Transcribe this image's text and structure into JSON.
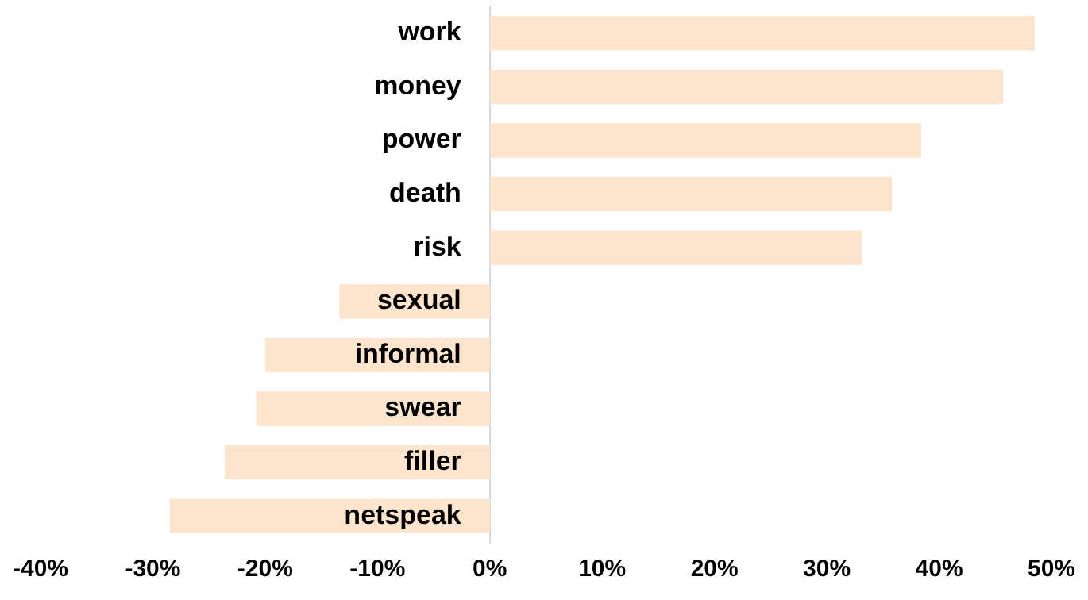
{
  "chart_data": {
    "type": "bar",
    "orientation": "horizontal",
    "categories": [
      "work",
      "money",
      "power",
      "death",
      "risk",
      "sexual",
      "informal",
      "swear",
      "filler",
      "netspeak"
    ],
    "values": [
      48.5,
      45.7,
      38.4,
      35.8,
      33.1,
      -13.4,
      -20.0,
      -20.8,
      -23.6,
      -28.5
    ],
    "color": "#fde4cd",
    "xlim": [
      -40,
      50
    ],
    "xticks": [
      {
        "value": -40,
        "label": "-40%"
      },
      {
        "value": -30,
        "label": "-30%"
      },
      {
        "value": -20,
        "label": "-20%"
      },
      {
        "value": -10,
        "label": "-10%"
      },
      {
        "value": 0,
        "label": "0%"
      },
      {
        "value": 10,
        "label": "10%"
      },
      {
        "value": 20,
        "label": "20%"
      },
      {
        "value": 30,
        "label": "30%"
      },
      {
        "value": 40,
        "label": "40%"
      },
      {
        "value": 50,
        "label": "50%"
      }
    ],
    "grid": false,
    "legend": false
  }
}
